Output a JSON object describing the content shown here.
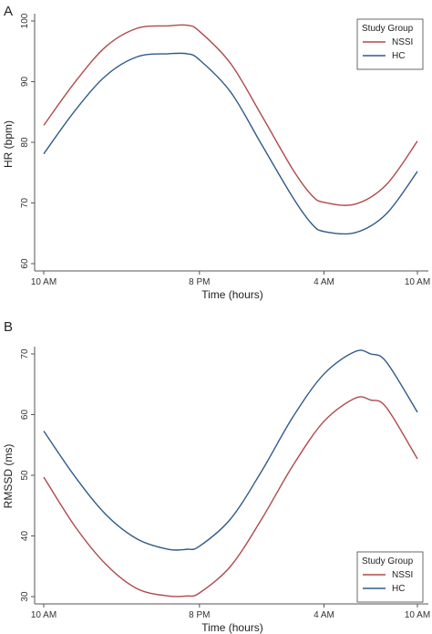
{
  "chart_data": [
    {
      "panel_label": "A",
      "type": "line",
      "xlabel": "Time (hours)",
      "ylabel": "HR (bpm)",
      "x_tick_labels": [
        "10 AM",
        "8 PM",
        "4 AM",
        "10 AM"
      ],
      "x_tick_hours": [
        10,
        20,
        28,
        34
      ],
      "xlim": [
        10,
        34
      ],
      "ylim": [
        60,
        100
      ],
      "y_ticks": [
        60,
        70,
        80,
        90,
        100
      ],
      "grid": false,
      "legend": {
        "title": "Study Group",
        "placement": "top-right"
      },
      "series": [
        {
          "name": "NSSI",
          "color": "#b04a4a",
          "x": [
            10,
            12,
            14,
            16,
            18,
            19.2,
            20,
            22,
            24,
            26,
            27.2,
            28,
            30,
            32,
            34
          ],
          "y": [
            82.8,
            89.9,
            95.8,
            98.8,
            99.2,
            99.3,
            98.3,
            93.0,
            84.4,
            75.5,
            71.3,
            70.1,
            69.8,
            73.0,
            80.2
          ]
        },
        {
          "name": "HC",
          "color": "#2f5b8a",
          "x": [
            10,
            12,
            14,
            16,
            18,
            19.2,
            20,
            22,
            24,
            26,
            27.2,
            28,
            30,
            32,
            34
          ],
          "y": [
            78.1,
            85.2,
            91.0,
            94.1,
            94.6,
            94.6,
            93.6,
            88.3,
            79.6,
            70.9,
            66.6,
            65.3,
            65.1,
            68.2,
            75.2
          ]
        }
      ]
    },
    {
      "panel_label": "B",
      "type": "line",
      "xlabel": "Time (hours)",
      "ylabel": "RMSSD (ms)",
      "x_tick_labels": [
        "10 AM",
        "8 PM",
        "4 AM",
        "10 AM"
      ],
      "x_tick_hours": [
        10,
        20,
        28,
        34
      ],
      "xlim": [
        10,
        34
      ],
      "ylim": [
        30,
        70
      ],
      "y_ticks": [
        30,
        40,
        50,
        60,
        70
      ],
      "grid": false,
      "legend": {
        "title": "Study Group",
        "placement": "bottom-right"
      },
      "series": [
        {
          "name": "NSSI",
          "color": "#b04a4a",
          "x": [
            10,
            12,
            14,
            16,
            18,
            19.2,
            20,
            22,
            24,
            26,
            28,
            30,
            31,
            32,
            34
          ],
          "y": [
            49.7,
            41.6,
            35.3,
            31.3,
            30.1,
            30.1,
            30.6,
            35.0,
            42.8,
            51.6,
            58.9,
            62.7,
            62.4,
            61.2,
            52.7
          ]
        },
        {
          "name": "HC",
          "color": "#2f5b8a",
          "x": [
            10,
            12,
            14,
            16,
            18,
            19.2,
            20,
            22,
            24,
            26,
            28,
            30,
            31,
            32,
            34
          ],
          "y": [
            57.3,
            49.8,
            43.5,
            39.5,
            37.8,
            37.8,
            38.3,
            42.8,
            50.7,
            59.6,
            66.7,
            70.4,
            70.0,
            68.7,
            60.4
          ]
        }
      ]
    }
  ]
}
